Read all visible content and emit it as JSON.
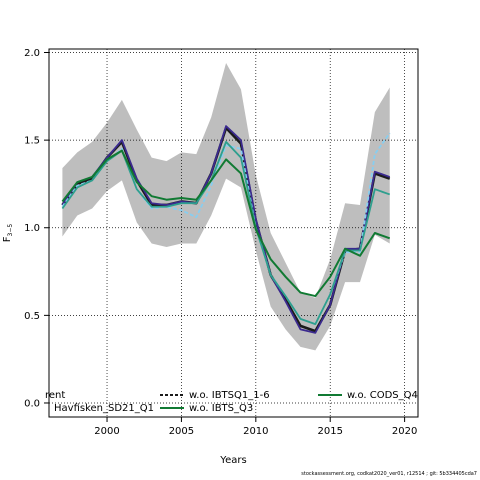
{
  "chart_data": {
    "type": "line",
    "xlabel": "Years",
    "ylabel": "F",
    "ylabel_subscript": "3−5",
    "xlim": [
      1996.1,
      2020.9
    ],
    "ylim": [
      -0.08,
      2.02
    ],
    "x_ticks": [
      2000,
      2005,
      2010,
      2015,
      2020
    ],
    "y_ticks": [
      0.0,
      0.5,
      1.0,
      1.5,
      2.0
    ],
    "x_tick_labels": [
      "2000",
      "2005",
      "2010",
      "2015",
      "2020"
    ],
    "y_tick_labels": [
      "0.0",
      "0.5",
      "1.0",
      "1.5",
      "2.0"
    ],
    "grid": true,
    "grid_style": "dotted",
    "x": [
      1997,
      1998,
      1999,
      2000,
      2001,
      2002,
      2003,
      2004,
      2005,
      2006,
      2007,
      2008,
      2009,
      2010,
      2011,
      2012,
      2013,
      2014,
      2015,
      2016,
      2017,
      2018,
      2019
    ],
    "confidence_band": {
      "color": "#bebebe",
      "lower": [
        0.95,
        1.07,
        1.11,
        1.21,
        1.27,
        1.03,
        0.91,
        0.89,
        0.91,
        0.91,
        1.07,
        1.28,
        1.23,
        0.87,
        0.55,
        0.42,
        0.32,
        0.3,
        0.44,
        0.69,
        0.69,
        0.96,
        0.91
      ],
      "upper": [
        1.34,
        1.43,
        1.49,
        1.6,
        1.73,
        1.56,
        1.4,
        1.38,
        1.43,
        1.42,
        1.63,
        1.94,
        1.79,
        1.3,
        0.97,
        0.8,
        0.63,
        0.6,
        0.82,
        1.14,
        1.13,
        1.66,
        1.8
      ]
    },
    "series": [
      {
        "name": "rent",
        "label": "rent",
        "color": "#1b1b1b",
        "dash": "none",
        "width": 2.6,
        "values": [
          1.13,
          1.25,
          1.28,
          1.4,
          1.49,
          1.27,
          1.13,
          1.13,
          1.15,
          1.14,
          1.31,
          1.57,
          1.48,
          1.04,
          0.73,
          0.59,
          0.44,
          0.41,
          0.56,
          0.87,
          0.88,
          1.31,
          1.28
        ]
      },
      {
        "name": "Havfisken_SD21_Q1",
        "label": "Havfisken_SD21_Q1",
        "color": "#3b2a8f",
        "dash": "none",
        "width": 1.8,
        "values": [
          1.13,
          1.26,
          1.29,
          1.4,
          1.5,
          1.28,
          1.14,
          1.13,
          1.15,
          1.14,
          1.31,
          1.58,
          1.5,
          1.05,
          0.73,
          0.58,
          0.42,
          0.4,
          0.56,
          0.88,
          0.88,
          1.32,
          1.29
        ]
      },
      {
        "name": "w.o. IBTSQ1_1-6",
        "label": "w.o. IBTSQ1_1-6",
        "color": "#87cef0",
        "dash": "4,2",
        "width": 1.8,
        "values": [
          1.12,
          1.24,
          1.27,
          1.38,
          1.45,
          1.22,
          1.11,
          1.12,
          1.1,
          1.06,
          1.24,
          1.47,
          1.45,
          1.0,
          0.73,
          0.61,
          0.48,
          0.45,
          0.62,
          0.86,
          0.86,
          1.42,
          1.54
        ]
      },
      {
        "name": "w.o. IBTS_Q3",
        "label": "w.o. IBTS_Q3",
        "color": "#2e9f8e",
        "dash": "none",
        "width": 1.8,
        "values": [
          1.11,
          1.23,
          1.27,
          1.38,
          1.44,
          1.22,
          1.12,
          1.12,
          1.14,
          1.14,
          1.27,
          1.49,
          1.4,
          1.0,
          0.73,
          0.61,
          0.48,
          0.45,
          0.62,
          0.87,
          0.87,
          1.22,
          1.19
        ]
      },
      {
        "name": "w.o. CODS_Q4",
        "label": "w.o. CODS_Q4",
        "color": "#117a33",
        "dash": "none",
        "width": 2.0,
        "values": [
          1.15,
          1.26,
          1.29,
          1.39,
          1.44,
          1.26,
          1.18,
          1.16,
          1.17,
          1.16,
          1.27,
          1.39,
          1.31,
          0.99,
          0.82,
          0.72,
          0.63,
          0.61,
          0.72,
          0.88,
          0.84,
          0.97,
          0.94
        ]
      }
    ],
    "legend": {
      "placement": "bottom-left",
      "entries": [
        {
          "label": "rent",
          "line": false,
          "column": 0,
          "row": 0
        },
        {
          "label": "Havfisken_SD21_Q1",
          "line": false,
          "column": 0,
          "row": 1
        },
        {
          "label": "w.o. IBTSQ1_1-6",
          "line": true,
          "color": "#1b1b1b",
          "dash": "3,2",
          "column": 1,
          "row": 0
        },
        {
          "label": "w.o. IBTS_Q3",
          "line": true,
          "color": "#117a33",
          "dash": "none",
          "column": 1,
          "row": 1
        },
        {
          "label": "w.o. CODS_Q4",
          "line": true,
          "color": "#117a33",
          "dash": "none",
          "column": 2,
          "row": 0
        }
      ]
    }
  },
  "footer": {
    "text": "stockassessment.org, codkat2020_ver01, r12514 ; git: 5b334405cda7"
  }
}
